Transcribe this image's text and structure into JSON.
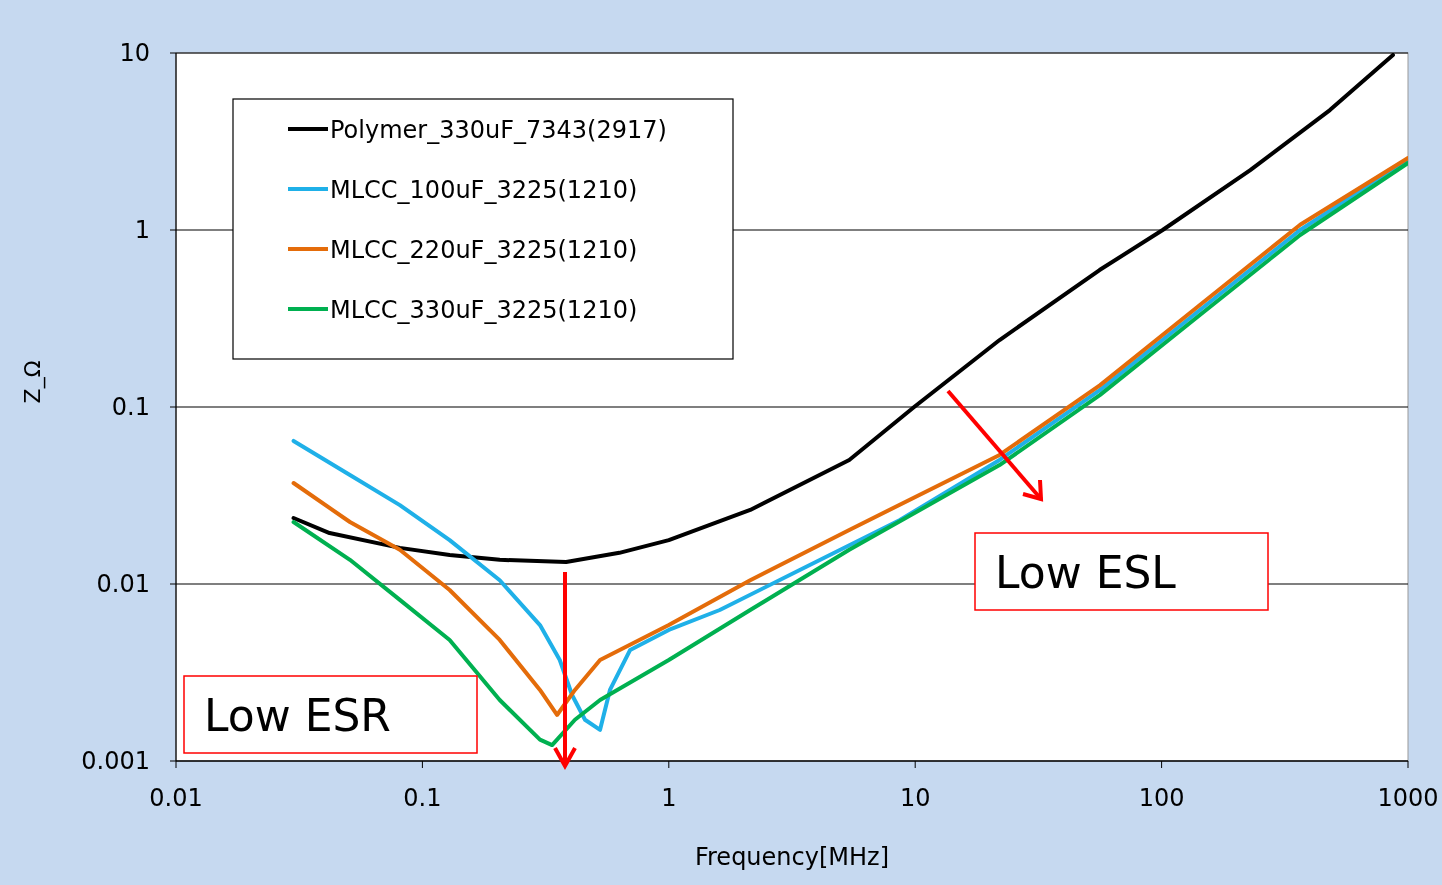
{
  "chart_data": {
    "type": "line",
    "xlabel": "Frequency[MHz]",
    "ylabel": "Z_Ω",
    "log": "xy",
    "xlim": [
      0.01,
      1000
    ],
    "xticks": [
      0.01,
      0.1,
      1,
      10,
      100,
      1000
    ],
    "ylim": [
      0.001,
      10
    ],
    "yticks": [
      0.001,
      0.01,
      0.1,
      1,
      10
    ],
    "grid": "y",
    "legend": "top left",
    "line_style": "solid",
    "marker": "none",
    "annotations": [
      "Low ESR",
      "Low ESL"
    ],
    "series": [
      {
        "name": "Polymer_330uF_7343(2917)",
        "color": "#000000",
        "x": [
          0.03,
          0.042,
          0.081,
          0.129,
          0.206,
          0.383,
          0.63,
          1.0,
          2.14,
          5.4,
          9.9,
          22,
          56,
          101,
          229,
          482,
          869
        ],
        "values": [
          0.0236,
          0.0194,
          0.016,
          0.0146,
          0.0137,
          0.0133,
          0.015,
          0.0177,
          0.0262,
          0.0502,
          0.1,
          0.239,
          0.594,
          1,
          2.18,
          4.76,
          9.75
        ]
      },
      {
        "name": "MLCC_100uF_3225(1210)",
        "color": "#1fb0e8",
        "x": [
          0.03,
          0.0508,
          0.081,
          0.129,
          0.206,
          0.3,
          0.361,
          0.405,
          0.457,
          0.526,
          0.577,
          0.697,
          1.0,
          1.61,
          3.4,
          8.67,
          22,
          56.3,
          143,
          365,
          1000
        ],
        "values": [
          0.0643,
          0.0413,
          0.0279,
          0.0177,
          0.0105,
          0.00586,
          0.00372,
          0.00236,
          0.00171,
          0.0015,
          0.00252,
          0.00424,
          0.0055,
          0.00713,
          0.012,
          0.023,
          0.0502,
          0.125,
          0.353,
          1,
          2.48
        ]
      },
      {
        "name": "MLCC_220uF_3225(1210)",
        "color": "#e46c0a",
        "x": [
          0.03,
          0.0508,
          0.081,
          0.129,
          0.206,
          0.3,
          0.352,
          0.416,
          0.526,
          1.0,
          2.14,
          5.4,
          22,
          56.3,
          143,
          365,
          1000
        ],
        "values": [
          0.0372,
          0.0224,
          0.0156,
          0.00925,
          0.00483,
          0.00252,
          0.00182,
          0.00252,
          0.00372,
          0.00586,
          0.0105,
          0.0202,
          0.0536,
          0.133,
          0.377,
          1.07,
          2.55
        ]
      },
      {
        "name": "MLCC_330uF_3225(1210)",
        "color": "#00b050",
        "x": [
          0.03,
          0.0508,
          0.081,
          0.129,
          0.206,
          0.3,
          0.336,
          0.416,
          0.526,
          1.0,
          2.14,
          5.4,
          22,
          56.3,
          143,
          365,
          1000
        ],
        "values": [
          0.0224,
          0.0137,
          0.00813,
          0.00483,
          0.00221,
          0.00132,
          0.00123,
          0.00171,
          0.00221,
          0.00372,
          0.00713,
          0.0156,
          0.047,
          0.117,
          0.331,
          0.937,
          2.39
        ]
      }
    ]
  }
}
